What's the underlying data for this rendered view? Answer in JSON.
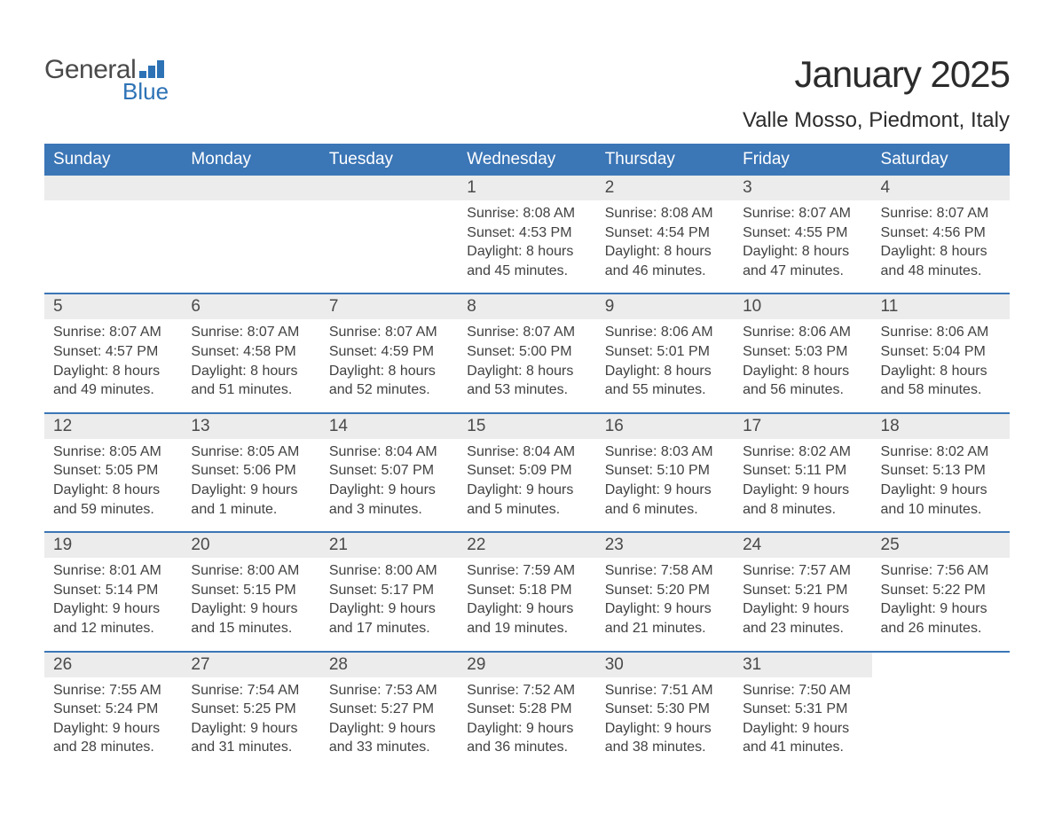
{
  "brand": {
    "general": "General",
    "blue": "Blue"
  },
  "title": "January 2025",
  "location": "Valle Mosso, Piedmont, Italy",
  "colors": {
    "header_bg": "#3b76b6",
    "header_text": "#ffffff",
    "strip_bg": "#ececec",
    "text": "#414141",
    "rule": "#3b76b6",
    "logo_blue": "#2d72b5"
  },
  "dow": [
    "Sunday",
    "Monday",
    "Tuesday",
    "Wednesday",
    "Thursday",
    "Friday",
    "Saturday"
  ],
  "weeks": [
    [
      {
        "blank": true
      },
      {
        "blank": true
      },
      {
        "blank": true
      },
      {
        "n": "1",
        "sr": "Sunrise: 8:08 AM",
        "ss": "Sunset: 4:53 PM",
        "dl1": "Daylight: 8 hours",
        "dl2": "and 45 minutes."
      },
      {
        "n": "2",
        "sr": "Sunrise: 8:08 AM",
        "ss": "Sunset: 4:54 PM",
        "dl1": "Daylight: 8 hours",
        "dl2": "and 46 minutes."
      },
      {
        "n": "3",
        "sr": "Sunrise: 8:07 AM",
        "ss": "Sunset: 4:55 PM",
        "dl1": "Daylight: 8 hours",
        "dl2": "and 47 minutes."
      },
      {
        "n": "4",
        "sr": "Sunrise: 8:07 AM",
        "ss": "Sunset: 4:56 PM",
        "dl1": "Daylight: 8 hours",
        "dl2": "and 48 minutes."
      }
    ],
    [
      {
        "n": "5",
        "sr": "Sunrise: 8:07 AM",
        "ss": "Sunset: 4:57 PM",
        "dl1": "Daylight: 8 hours",
        "dl2": "and 49 minutes."
      },
      {
        "n": "6",
        "sr": "Sunrise: 8:07 AM",
        "ss": "Sunset: 4:58 PM",
        "dl1": "Daylight: 8 hours",
        "dl2": "and 51 minutes."
      },
      {
        "n": "7",
        "sr": "Sunrise: 8:07 AM",
        "ss": "Sunset: 4:59 PM",
        "dl1": "Daylight: 8 hours",
        "dl2": "and 52 minutes."
      },
      {
        "n": "8",
        "sr": "Sunrise: 8:07 AM",
        "ss": "Sunset: 5:00 PM",
        "dl1": "Daylight: 8 hours",
        "dl2": "and 53 minutes."
      },
      {
        "n": "9",
        "sr": "Sunrise: 8:06 AM",
        "ss": "Sunset: 5:01 PM",
        "dl1": "Daylight: 8 hours",
        "dl2": "and 55 minutes."
      },
      {
        "n": "10",
        "sr": "Sunrise: 8:06 AM",
        "ss": "Sunset: 5:03 PM",
        "dl1": "Daylight: 8 hours",
        "dl2": "and 56 minutes."
      },
      {
        "n": "11",
        "sr": "Sunrise: 8:06 AM",
        "ss": "Sunset: 5:04 PM",
        "dl1": "Daylight: 8 hours",
        "dl2": "and 58 minutes."
      }
    ],
    [
      {
        "n": "12",
        "sr": "Sunrise: 8:05 AM",
        "ss": "Sunset: 5:05 PM",
        "dl1": "Daylight: 8 hours",
        "dl2": "and 59 minutes."
      },
      {
        "n": "13",
        "sr": "Sunrise: 8:05 AM",
        "ss": "Sunset: 5:06 PM",
        "dl1": "Daylight: 9 hours",
        "dl2": "and 1 minute."
      },
      {
        "n": "14",
        "sr": "Sunrise: 8:04 AM",
        "ss": "Sunset: 5:07 PM",
        "dl1": "Daylight: 9 hours",
        "dl2": "and 3 minutes."
      },
      {
        "n": "15",
        "sr": "Sunrise: 8:04 AM",
        "ss": "Sunset: 5:09 PM",
        "dl1": "Daylight: 9 hours",
        "dl2": "and 5 minutes."
      },
      {
        "n": "16",
        "sr": "Sunrise: 8:03 AM",
        "ss": "Sunset: 5:10 PM",
        "dl1": "Daylight: 9 hours",
        "dl2": "and 6 minutes."
      },
      {
        "n": "17",
        "sr": "Sunrise: 8:02 AM",
        "ss": "Sunset: 5:11 PM",
        "dl1": "Daylight: 9 hours",
        "dl2": "and 8 minutes."
      },
      {
        "n": "18",
        "sr": "Sunrise: 8:02 AM",
        "ss": "Sunset: 5:13 PM",
        "dl1": "Daylight: 9 hours",
        "dl2": "and 10 minutes."
      }
    ],
    [
      {
        "n": "19",
        "sr": "Sunrise: 8:01 AM",
        "ss": "Sunset: 5:14 PM",
        "dl1": "Daylight: 9 hours",
        "dl2": "and 12 minutes."
      },
      {
        "n": "20",
        "sr": "Sunrise: 8:00 AM",
        "ss": "Sunset: 5:15 PM",
        "dl1": "Daylight: 9 hours",
        "dl2": "and 15 minutes."
      },
      {
        "n": "21",
        "sr": "Sunrise: 8:00 AM",
        "ss": "Sunset: 5:17 PM",
        "dl1": "Daylight: 9 hours",
        "dl2": "and 17 minutes."
      },
      {
        "n": "22",
        "sr": "Sunrise: 7:59 AM",
        "ss": "Sunset: 5:18 PM",
        "dl1": "Daylight: 9 hours",
        "dl2": "and 19 minutes."
      },
      {
        "n": "23",
        "sr": "Sunrise: 7:58 AM",
        "ss": "Sunset: 5:20 PM",
        "dl1": "Daylight: 9 hours",
        "dl2": "and 21 minutes."
      },
      {
        "n": "24",
        "sr": "Sunrise: 7:57 AM",
        "ss": "Sunset: 5:21 PM",
        "dl1": "Daylight: 9 hours",
        "dl2": "and 23 minutes."
      },
      {
        "n": "25",
        "sr": "Sunrise: 7:56 AM",
        "ss": "Sunset: 5:22 PM",
        "dl1": "Daylight: 9 hours",
        "dl2": "and 26 minutes."
      }
    ],
    [
      {
        "n": "26",
        "sr": "Sunrise: 7:55 AM",
        "ss": "Sunset: 5:24 PM",
        "dl1": "Daylight: 9 hours",
        "dl2": "and 28 minutes."
      },
      {
        "n": "27",
        "sr": "Sunrise: 7:54 AM",
        "ss": "Sunset: 5:25 PM",
        "dl1": "Daylight: 9 hours",
        "dl2": "and 31 minutes."
      },
      {
        "n": "28",
        "sr": "Sunrise: 7:53 AM",
        "ss": "Sunset: 5:27 PM",
        "dl1": "Daylight: 9 hours",
        "dl2": "and 33 minutes."
      },
      {
        "n": "29",
        "sr": "Sunrise: 7:52 AM",
        "ss": "Sunset: 5:28 PM",
        "dl1": "Daylight: 9 hours",
        "dl2": "and 36 minutes."
      },
      {
        "n": "30",
        "sr": "Sunrise: 7:51 AM",
        "ss": "Sunset: 5:30 PM",
        "dl1": "Daylight: 9 hours",
        "dl2": "and 38 minutes."
      },
      {
        "n": "31",
        "sr": "Sunrise: 7:50 AM",
        "ss": "Sunset: 5:31 PM",
        "dl1": "Daylight: 9 hours",
        "dl2": "and 41 minutes."
      },
      {
        "blank": true,
        "no_strip": true
      }
    ]
  ]
}
